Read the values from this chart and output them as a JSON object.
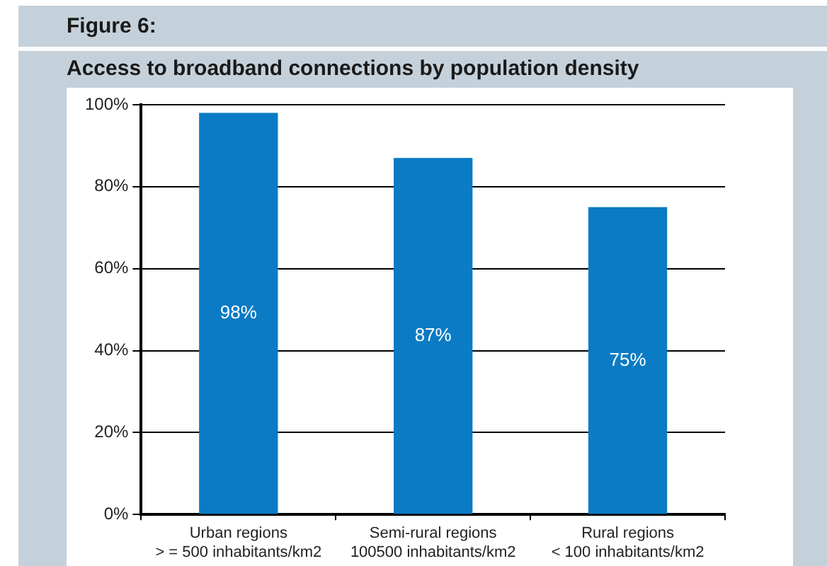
{
  "chart_data": {
    "type": "bar",
    "title": "Figure 6:",
    "subtitle": "Access to broadband connections by population density",
    "categories": [
      "Urban regions\n> = 500 inhabitants/km2",
      "Semi-rural regions\n100500 inhabitants/km2",
      "Rural regions\n< 100 inhabitants/km2"
    ],
    "values": [
      98,
      87,
      75
    ],
    "value_labels": [
      "98%",
      "87%",
      "75%"
    ],
    "color": "#0a7bc4",
    "ylim": [
      0,
      100
    ],
    "yticks": [
      {
        "value": 0,
        "label": "0%"
      },
      {
        "value": 20,
        "label": "20%"
      },
      {
        "value": 40,
        "label": "40%"
      },
      {
        "value": 60,
        "label": "60%"
      },
      {
        "value": 80,
        "label": "80%"
      },
      {
        "value": 100,
        "label": "100%"
      }
    ],
    "grid": "y",
    "legend": false
  }
}
